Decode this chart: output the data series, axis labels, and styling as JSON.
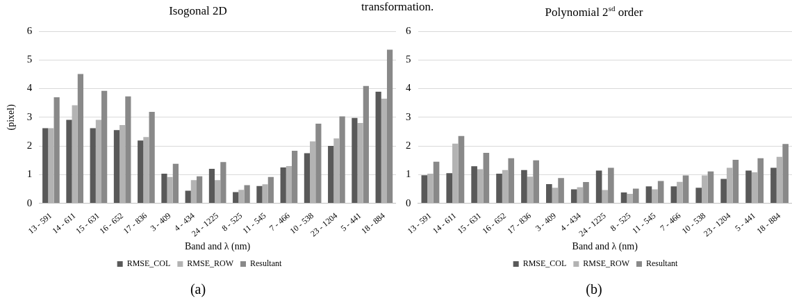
{
  "chart_data": [
    {
      "type": "bar",
      "title": "Isogonal  2D",
      "xlabel": "Band and λ (nm)",
      "ylabel": "(pixel)",
      "annotations": [
        "transformation.",
        "(a)"
      ],
      "categories": [
        "13 - 591",
        "14 - 611",
        "15 - 631",
        "16 - 652",
        "17 - 836",
        "3 - 409",
        "4 - 434",
        "24 - 1225",
        "8 - 525",
        "11 - 545",
        "7 - 466",
        "10 - 538",
        "23 - 1204",
        "5 - 441",
        "18 - 884"
      ],
      "series": [
        {
          "name": "RMSE_COL",
          "color": "#595959",
          "values": [
            2.62,
            2.91,
            2.62,
            2.55,
            2.19,
            1.03,
            0.44,
            1.2,
            0.39,
            0.6,
            1.25,
            1.75,
            2.0,
            2.98,
            3.89
          ]
        },
        {
          "name": "RMSE_ROW",
          "color": "#b3b3b3",
          "values": [
            2.62,
            3.42,
            2.91,
            2.73,
            2.31,
            0.92,
            0.81,
            0.81,
            0.47,
            0.66,
            1.3,
            2.16,
            2.26,
            2.8,
            3.65
          ]
        },
        {
          "name": "Resultant",
          "color": "#898989",
          "values": [
            3.7,
            4.51,
            3.92,
            3.73,
            3.19,
            1.38,
            0.94,
            1.44,
            0.63,
            0.92,
            1.83,
            2.78,
            3.03,
            4.09,
            5.36
          ]
        }
      ],
      "ylim": [
        0,
        6
      ],
      "yticks": [
        0,
        1,
        2,
        3,
        4,
        5,
        6
      ],
      "grid": "y",
      "legend": "bottom"
    },
    {
      "type": "bar",
      "title": "Polynomial  2$^{sd}$ order",
      "xlabel": "Band and λ (nm)",
      "annotations": [
        "(b)"
      ],
      "categories": [
        "13 - 591",
        "14 - 611",
        "15 - 631",
        "16 - 652",
        "17 - 836",
        "3 - 409",
        "4 - 434",
        "24 - 1225",
        "8 - 525",
        "11 - 545",
        "7 - 466",
        "10 - 538",
        "23 - 1204",
        "5 - 441",
        "18 - 884"
      ],
      "series": [
        {
          "name": "RMSE_COL",
          "color": "#595959",
          "values": [
            0.98,
            1.05,
            1.29,
            1.03,
            1.16,
            0.67,
            0.49,
            1.14,
            0.38,
            0.59,
            0.59,
            0.54,
            0.85,
            1.14,
            1.24
          ]
        },
        {
          "name": "RMSE_ROW",
          "color": "#b3b3b3",
          "values": [
            1.03,
            2.08,
            1.19,
            1.16,
            0.93,
            0.54,
            0.56,
            0.46,
            0.33,
            0.49,
            0.75,
            0.97,
            1.24,
            1.08,
            1.62
          ]
        },
        {
          "name": "Resultant",
          "color": "#898989",
          "values": [
            1.45,
            2.35,
            1.76,
            1.57,
            1.5,
            0.88,
            0.74,
            1.24,
            0.51,
            0.78,
            0.97,
            1.11,
            1.52,
            1.57,
            2.07
          ]
        }
      ],
      "ylim": [
        0,
        6
      ],
      "yticks": [
        0,
        1,
        2,
        3,
        4,
        5,
        6
      ],
      "grid": "y",
      "legend": "bottom"
    }
  ]
}
